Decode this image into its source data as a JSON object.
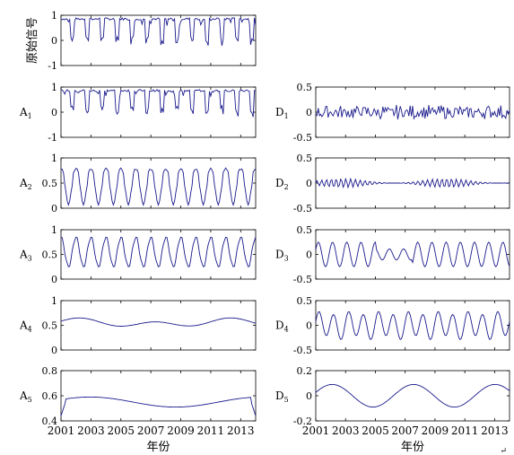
{
  "chart_data": {
    "type": "line",
    "figure_caption_mark": "↵",
    "x_axis": {
      "label": "年份",
      "range": [
        2001,
        2014
      ],
      "ticks": [
        "2001",
        "2003",
        "2005",
        "2007",
        "2009",
        "2011",
        "2013"
      ]
    },
    "panels": [
      {
        "id": "orig",
        "label": "原始信号",
        "ylim": [
          -1,
          1
        ],
        "yticks": [
          "-1",
          "0",
          "1"
        ],
        "style": "raw",
        "base": 0.45,
        "amp": 0.45
      },
      {
        "id": "A1",
        "label": "A",
        "sub": "1",
        "ylim": [
          -1,
          1
        ],
        "yticks": [
          "-1",
          "0",
          "1"
        ],
        "style": "raw",
        "base": 0.5,
        "amp": 0.4
      },
      {
        "id": "A2",
        "label": "A",
        "sub": "2",
        "ylim": [
          0,
          1
        ],
        "yticks": [
          "0",
          "0.5",
          "1"
        ],
        "style": "smooth2",
        "base": 0.45,
        "amp": 0.35
      },
      {
        "id": "A3",
        "label": "A",
        "sub": "3",
        "ylim": [
          0,
          1
        ],
        "yticks": [
          "0",
          "0.5",
          "1"
        ],
        "style": "smooth3",
        "base": 0.55,
        "amp": 0.3
      },
      {
        "id": "A4",
        "label": "A",
        "sub": "4",
        "ylim": [
          0,
          1
        ],
        "yticks": [
          "0",
          "0.5",
          "1"
        ],
        "style": "smooth4",
        "base": 0.55,
        "amp": 0.1
      },
      {
        "id": "A5",
        "label": "A",
        "sub": "5",
        "ylim": [
          0.4,
          0.8
        ],
        "yticks": [
          "0.4",
          "0.6",
          "0.8"
        ],
        "style": "smooth5",
        "base": 0.55,
        "amp": 0.04
      },
      {
        "id": "D1",
        "label": "D",
        "sub": "1",
        "ylim": [
          -0.5,
          0.5
        ],
        "yticks": [
          "-0.5",
          "0",
          "0.5"
        ],
        "style": "noise",
        "base": 0,
        "amp": 0.15
      },
      {
        "id": "D2",
        "label": "D",
        "sub": "2",
        "ylim": [
          -0.5,
          0.5
        ],
        "yticks": [
          "-0.5",
          "0",
          "0.5"
        ],
        "style": "noise2",
        "base": 0,
        "amp": 0.09
      },
      {
        "id": "D3",
        "label": "D",
        "sub": "3",
        "ylim": [
          -0.5,
          0.5
        ],
        "yticks": [
          "-0.5",
          "0",
          "0.5"
        ],
        "style": "osc3",
        "base": 0,
        "amp": 0.25
      },
      {
        "id": "D4",
        "label": "D",
        "sub": "4",
        "ylim": [
          -0.5,
          0.5
        ],
        "yticks": [
          "-0.5",
          "0",
          "0.5"
        ],
        "style": "osc4",
        "base": 0,
        "amp": 0.25
      },
      {
        "id": "D5",
        "label": "D",
        "sub": "5",
        "ylim": [
          -0.2,
          0.2
        ],
        "yticks": [
          "-0.2",
          "0",
          "0.2"
        ],
        "style": "osc5",
        "base": 0,
        "amp": 0.09
      }
    ],
    "line_color": "#1a1a8c",
    "grid": false
  }
}
